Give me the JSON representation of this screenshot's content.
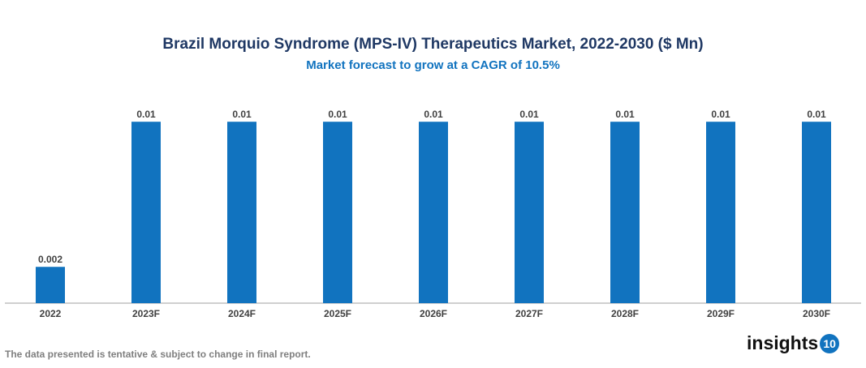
{
  "chart_data": {
    "type": "bar",
    "title": "Brazil Morquio Syndrome (MPS-IV) Therapeutics Market, 2022-2030 ($ Mn)",
    "subtitle": "Market forecast to grow at a CAGR of 10.5%",
    "categories": [
      "2022",
      "2023F",
      "2024F",
      "2025F",
      "2026F",
      "2027F",
      "2028F",
      "2029F",
      "2030F"
    ],
    "values": [
      0.002,
      0.01,
      0.01,
      0.01,
      0.01,
      0.01,
      0.01,
      0.01,
      0.01
    ],
    "labels": [
      "0.002",
      "0.01",
      "0.01",
      "0.01",
      "0.01",
      "0.01",
      "0.01",
      "0.01",
      "0.01"
    ],
    "xlabel": "",
    "ylabel": "",
    "ylim": [
      0,
      0.0105
    ],
    "grid": false,
    "bar_color": "#1173bf"
  },
  "footnote": "The data presented is tentative & subject to change in final report.",
  "logo": {
    "text": "insights",
    "badge": "10"
  }
}
